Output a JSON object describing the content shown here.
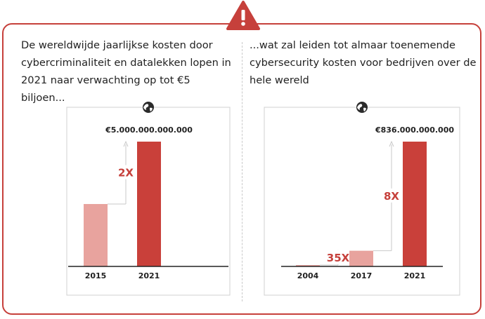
{
  "intro_left": "De wereldwijde jaarlijkse kosten door cybercriminaliteit en datalekken lopen in 2021 naar verwachting op tot €5 biljoen...",
  "intro_right": "...wat zal leiden tot almaar toenemende cybersecurity kosten voor bedrijven over de hele wereld",
  "alert_icon": "exclamation-warning-icon",
  "globe_icon": "globe-icon",
  "colors": {
    "accent": "#c6403b",
    "light_bar": "#e8a39e",
    "dark_bar": "#c9403a",
    "axis": "#222222",
    "arrow": "#c9c9c9"
  },
  "chart_data": [
    {
      "type": "bar",
      "categories": [
        "2015",
        "2021"
      ],
      "values": [
        2500000000000,
        5000000000000
      ],
      "value_labels": [
        "",
        "€5.000.000.000.000"
      ],
      "annotations": [
        {
          "label": "2X",
          "from": "2015",
          "to": "2021"
        }
      ],
      "title": "",
      "xlabel": "",
      "ylabel": "",
      "ylim": [
        0,
        5600000000000
      ],
      "grid": false
    },
    {
      "type": "bar",
      "categories": [
        "2004",
        "2017",
        "2021"
      ],
      "values": [
        3000000000,
        105000000000,
        836000000000
      ],
      "value_labels": [
        "",
        "",
        "€836.000.000.000"
      ],
      "annotations": [
        {
          "label": "35X",
          "from": "2004",
          "to": "2017"
        },
        {
          "label": "8X",
          "from": "2017",
          "to": "2021"
        }
      ],
      "title": "",
      "xlabel": "",
      "ylabel": "",
      "ylim": [
        0,
        940000000000
      ],
      "grid": false
    }
  ]
}
